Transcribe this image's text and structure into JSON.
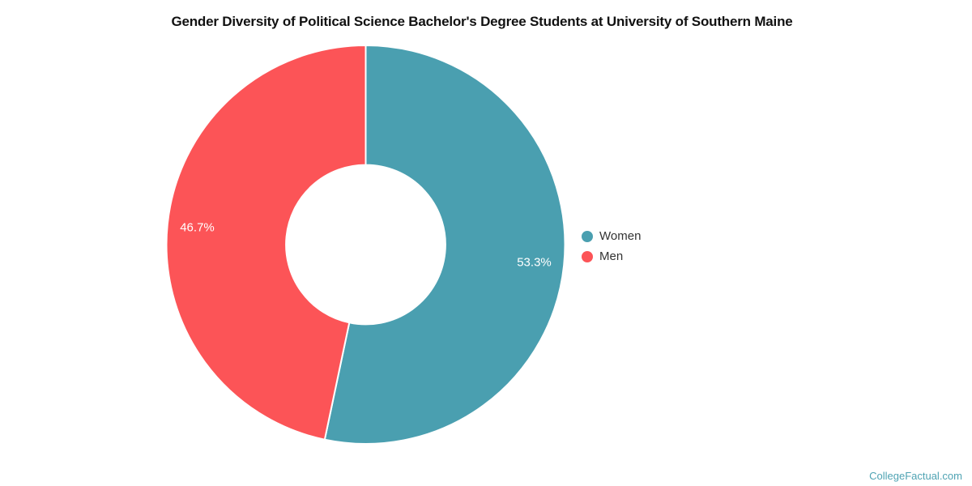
{
  "title": "Gender Diversity of Political Science Bachelor's Degree Students at University of Southern Maine",
  "footer": {
    "credit": "CollegeFactual.com"
  },
  "colors": {
    "women": "#4a9fb0",
    "men": "#fc5457",
    "separator": "#ffffff",
    "title_text": "#111111",
    "legend_text": "#333333",
    "credit_text": "#4fa3b3"
  },
  "legend": {
    "position": "right",
    "items": [
      {
        "label": "Women",
        "color": "#4a9fb0"
      },
      {
        "label": "Men",
        "color": "#fc5457"
      }
    ]
  },
  "chart_data": {
    "type": "pie",
    "subtype": "donut",
    "title": "Gender Diversity of Political Science Bachelor's Degree Students at University of Southern Maine",
    "categories": [
      "Women",
      "Men"
    ],
    "values": [
      53.3,
      46.7
    ],
    "data_labels": [
      "53.3%",
      "46.7%"
    ],
    "units": "%",
    "colors": [
      "#4a9fb0",
      "#fc5457"
    ],
    "start_angle_deg": 0,
    "direction": "clockwise",
    "inner_radius_ratio": 0.4,
    "grid": false,
    "legend_position": "right"
  }
}
